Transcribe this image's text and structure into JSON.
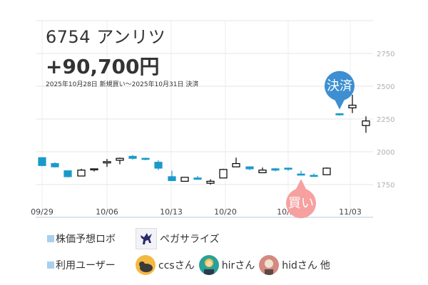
{
  "header": {
    "title": "6754 アンリツ",
    "profit": "+90,700円",
    "period": "2025年10月28日 新規買い～2025年10月31日 決済"
  },
  "markers": {
    "buy_label": "買い",
    "sell_label": "決済",
    "buy_color": "#f7a0a0",
    "sell_color": "#3d8fd1"
  },
  "legend": {
    "robo_label": "株価予想ロボ",
    "robo_name": "ペガサライズ",
    "robo_icon": "pegasus-icon",
    "users_label": "利用ユーザー",
    "users": [
      {
        "name": "ccsさん",
        "icon": "cat-avatar-icon"
      },
      {
        "name": "hirさん",
        "icon": "woman-avatar-icon"
      },
      {
        "name": "hidさん",
        "icon": "man-avatar-icon"
      }
    ],
    "others": "他"
  },
  "chart_data": {
    "type": "candlestick",
    "title": "",
    "xlabel": "",
    "ylabel": "",
    "ylim": [
      1500,
      3000
    ],
    "yticks": [
      1750,
      2000,
      2250,
      2500,
      2750
    ],
    "xtick_labels": [
      "09/29",
      "10/06",
      "10/13",
      "10/20",
      "10/27",
      "11/03"
    ],
    "grid": true,
    "up_color": "#ffffff",
    "down_color": "#1a9ac9",
    "candles": [
      {
        "date": "09/29",
        "open": 1955,
        "high": 1955,
        "low": 1890,
        "close": 1895
      },
      {
        "date": "09/30",
        "open": 1910,
        "high": 1920,
        "low": 1880,
        "close": 1885
      },
      {
        "date": "10/01",
        "open": 1855,
        "high": 1855,
        "low": 1805,
        "close": 1810
      },
      {
        "date": "10/02",
        "open": 1815,
        "high": 1870,
        "low": 1815,
        "close": 1860
      },
      {
        "date": "10/03",
        "open": 1865,
        "high": 1870,
        "low": 1850,
        "close": 1870
      },
      {
        "date": "10/06",
        "open": 1915,
        "high": 1945,
        "low": 1885,
        "close": 1925
      },
      {
        "date": "10/07",
        "open": 1935,
        "high": 1955,
        "low": 1905,
        "close": 1950
      },
      {
        "date": "10/08",
        "open": 1965,
        "high": 1975,
        "low": 1940,
        "close": 1950
      },
      {
        "date": "10/09",
        "open": 1950,
        "high": 1955,
        "low": 1935,
        "close": 1945
      },
      {
        "date": "10/10",
        "open": 1920,
        "high": 1935,
        "low": 1860,
        "close": 1875
      },
      {
        "date": "10/14",
        "open": 1810,
        "high": 1855,
        "low": 1780,
        "close": 1780
      },
      {
        "date": "10/15",
        "open": 1775,
        "high": 1805,
        "low": 1775,
        "close": 1805
      },
      {
        "date": "10/16",
        "open": 1800,
        "high": 1815,
        "low": 1790,
        "close": 1790
      },
      {
        "date": "10/17",
        "open": 1760,
        "high": 1790,
        "low": 1750,
        "close": 1775
      },
      {
        "date": "10/20",
        "open": 1800,
        "high": 1870,
        "low": 1800,
        "close": 1865
      },
      {
        "date": "10/21",
        "open": 1885,
        "high": 1955,
        "low": 1885,
        "close": 1910
      },
      {
        "date": "10/22",
        "open": 1885,
        "high": 1885,
        "low": 1860,
        "close": 1870
      },
      {
        "date": "10/23",
        "open": 1840,
        "high": 1880,
        "low": 1840,
        "close": 1860
      },
      {
        "date": "10/24",
        "open": 1870,
        "high": 1875,
        "low": 1850,
        "close": 1860
      },
      {
        "date": "10/27",
        "open": 1875,
        "high": 1880,
        "low": 1855,
        "close": 1870
      },
      {
        "date": "10/28",
        "open": 1830,
        "high": 1855,
        "low": 1825,
        "close": 1825
      },
      {
        "date": "10/29",
        "open": 1820,
        "high": 1835,
        "low": 1815,
        "close": 1815
      },
      {
        "date": "10/30",
        "open": 1825,
        "high": 1880,
        "low": 1825,
        "close": 1875
      },
      {
        "date": "10/31",
        "open": 2290,
        "high": 2290,
        "low": 2275,
        "close": 2285
      },
      {
        "date": "11/04",
        "open": 2335,
        "high": 2435,
        "low": 2295,
        "close": 2355
      },
      {
        "date": "11/05",
        "open": 2200,
        "high": 2270,
        "low": 2145,
        "close": 2235
      }
    ],
    "annotations": [
      {
        "type": "buy",
        "date": "10/28",
        "label": "買い"
      },
      {
        "type": "sell",
        "date": "10/31",
        "label": "決済"
      }
    ]
  }
}
